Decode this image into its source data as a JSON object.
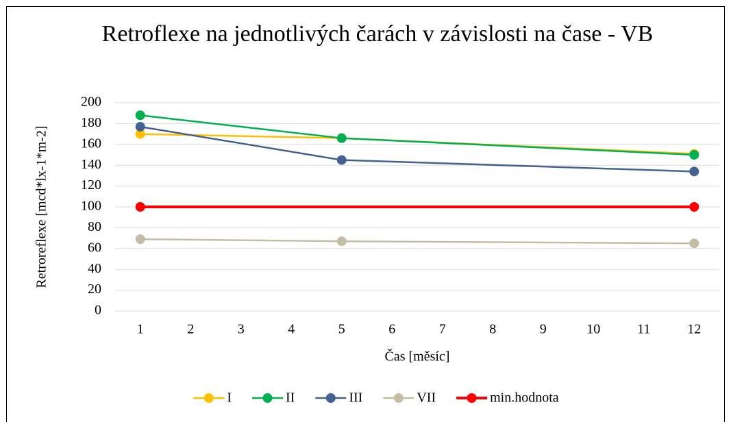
{
  "chart_data": {
    "type": "line",
    "title": "Retroflexe na jednotlivých čarách v závislosti na čase - VB",
    "x_label": "Čas [měsíc]",
    "y_label": "Retroreflexe [mcd*lx-1*m-2]",
    "xlim": [
      0.5,
      12.5
    ],
    "xticks": [
      1,
      2,
      3,
      4,
      5,
      6,
      7,
      8,
      9,
      10,
      11,
      12
    ],
    "ylim": [
      0,
      200
    ],
    "yticks": [
      0,
      20,
      40,
      60,
      80,
      100,
      120,
      140,
      160,
      180,
      200
    ],
    "grid": true,
    "legend": "bottom",
    "series": [
      {
        "name": "I",
        "color": "#ffc000",
        "x": [
          1,
          5,
          12
        ],
        "values": [
          170,
          166,
          151
        ]
      },
      {
        "name": "II",
        "color": "#00b050",
        "x": [
          1,
          5,
          12
        ],
        "values": [
          188,
          166,
          150
        ]
      },
      {
        "name": "III",
        "color": "#44628f",
        "x": [
          1,
          5,
          12
        ],
        "values": [
          177,
          145,
          134
        ]
      },
      {
        "name": "VII",
        "color": "#c4bda5",
        "x": [
          1,
          5,
          12
        ],
        "values": [
          69,
          67,
          65
        ]
      },
      {
        "name": "min.hodnota",
        "color": "#ff0000",
        "x": [
          1,
          12
        ],
        "values": [
          100,
          100
        ]
      }
    ]
  }
}
